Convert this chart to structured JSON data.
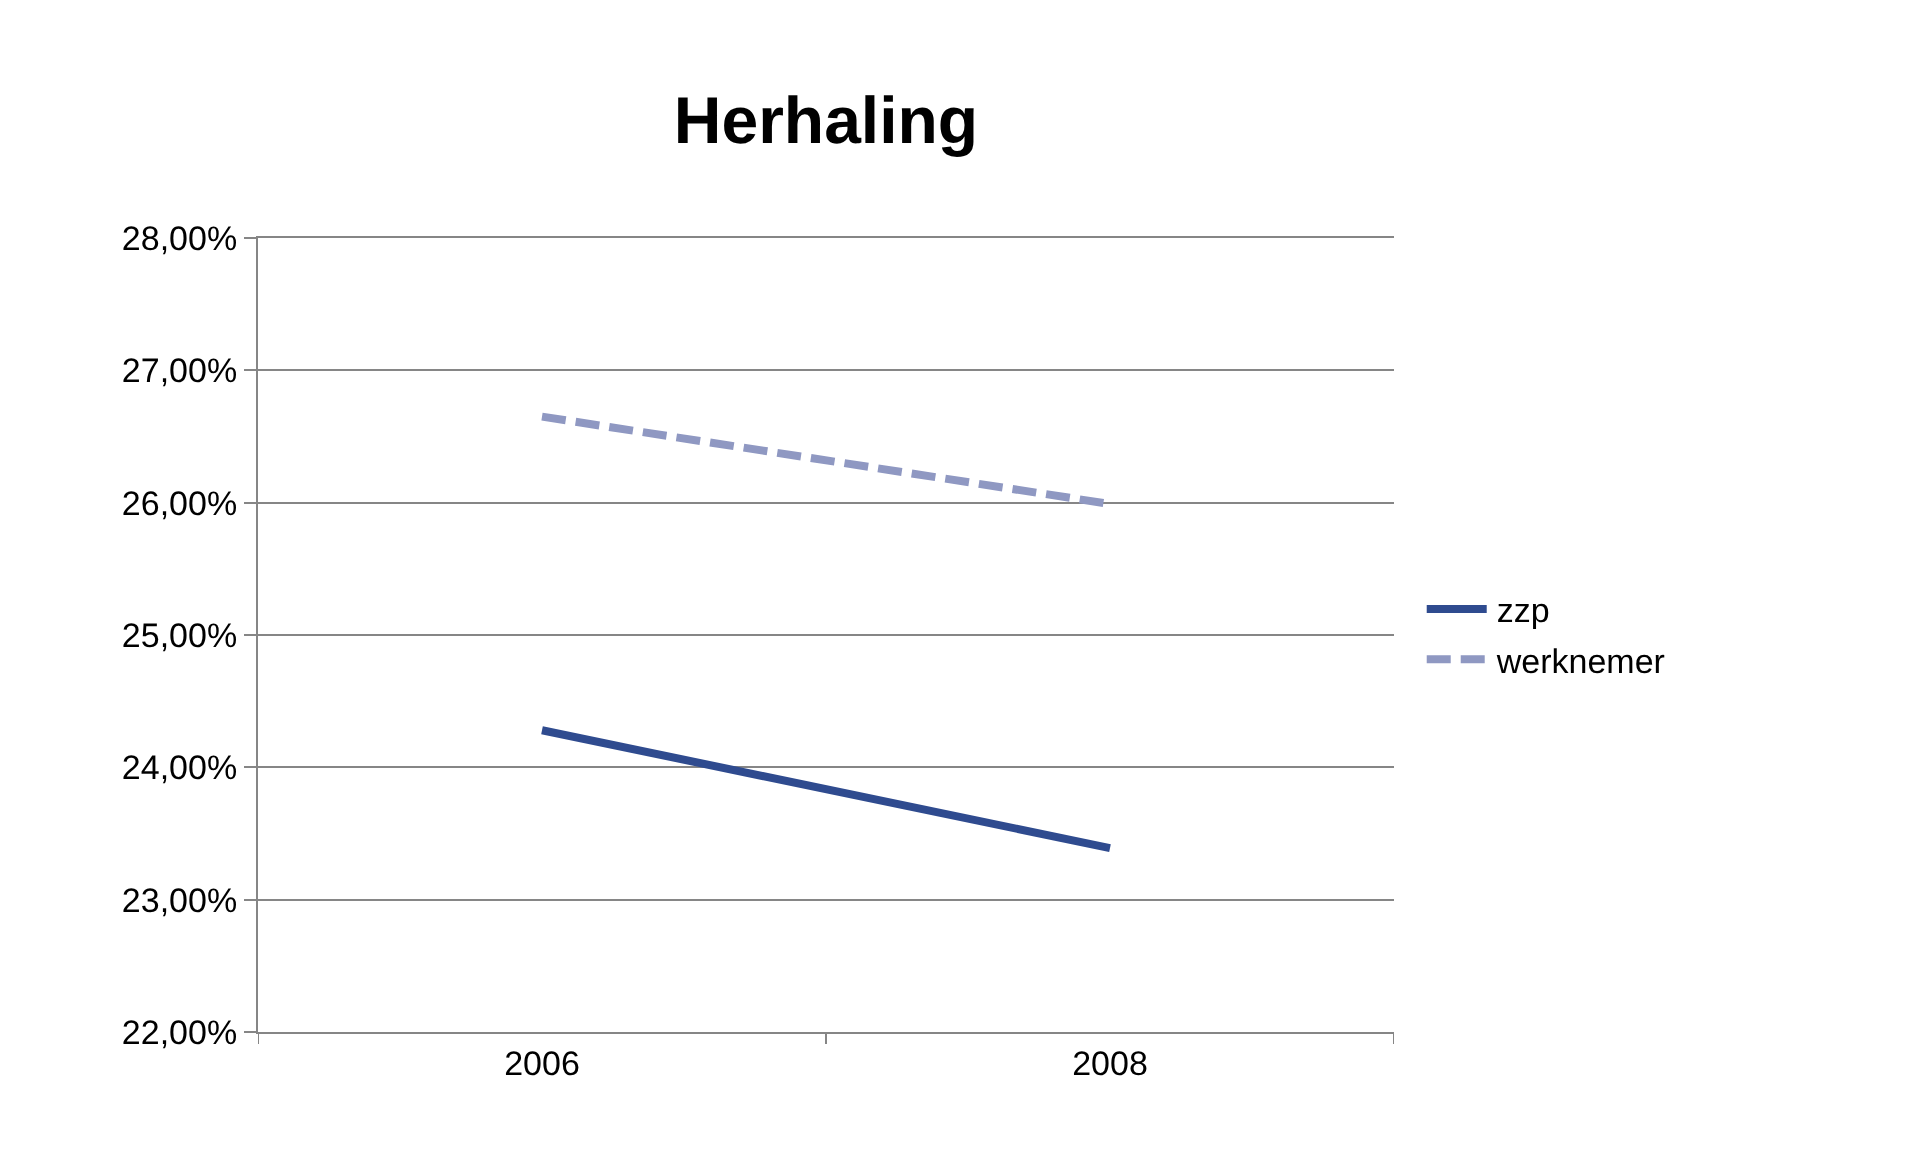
{
  "chart_data": {
    "type": "line",
    "title": "Herhaling",
    "categories": [
      "2006",
      "2008"
    ],
    "series": [
      {
        "name": "zzp",
        "color": "#2f4b8f",
        "values": [
          24.28,
          23.39
        ],
        "line_style": "solid"
      },
      {
        "name": "werknemer",
        "color": "#8f98c2",
        "values": [
          26.65,
          25.99
        ],
        "line_style": "dashed"
      }
    ],
    "ylim": [
      22,
      28
    ],
    "yticks": [
      {
        "value": 22,
        "label": "22,00%"
      },
      {
        "value": 23,
        "label": "23,00%"
      },
      {
        "value": 24,
        "label": "24,00%"
      },
      {
        "value": 25,
        "label": "25,00%"
      },
      {
        "value": 26,
        "label": "26,00%"
      },
      {
        "value": 27,
        "label": "27,00%"
      },
      {
        "value": 28,
        "label": "28,00%"
      }
    ],
    "grid": "y",
    "legend": "right",
    "marker": "none"
  }
}
